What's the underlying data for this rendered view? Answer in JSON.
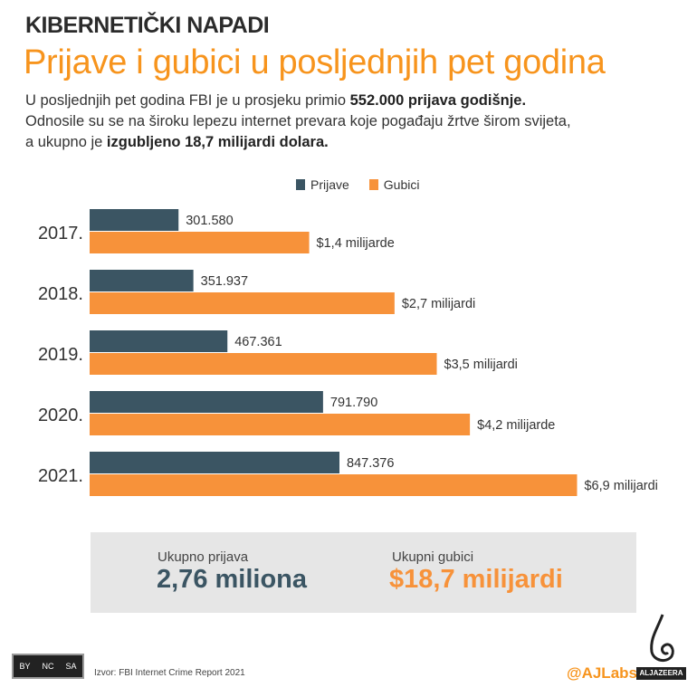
{
  "header": {
    "kicker": "KIBERNETIČKI NAPADI",
    "title": "Prijave i gubici u posljednjih pet godina",
    "lead_1a": "U posljednjih pet godina FBI je u prosjeku primio ",
    "lead_1b": "552.000 prijava godišnje.",
    "lead_2": "Odnosile su se na  široku lepezu internet prevara koje pogađaju žrtve širom svijeta,",
    "lead_3a": "a ukupno je ",
    "lead_3b": "izgubljeno 18,7 milijardi dolara."
  },
  "chart_data": {
    "type": "bar",
    "orientation": "horizontal",
    "categories": [
      "2017.",
      "2018.",
      "2019.",
      "2020.",
      "2021."
    ],
    "series": [
      {
        "name": "Prijave",
        "color": "#3b5563",
        "values": [
          301580,
          351937,
          467361,
          791790,
          847376
        ],
        "labels": [
          "301.580",
          "351.937",
          "467.361",
          "791.790",
          "847.376"
        ]
      },
      {
        "name": "Gubici",
        "color": "#f7923a",
        "values": [
          1.4,
          2.7,
          3.5,
          4.2,
          6.9
        ],
        "labels": [
          "$1,4 milijarde",
          "$2,7 milijardi",
          "$3,5 milijardi",
          "$4,2 milijarde",
          "$6,9 milijardi"
        ]
      }
    ],
    "legend": "top"
  },
  "summary": {
    "reports_label": "Ukupno prijava",
    "reports_value": "2,76 miliona",
    "losses_label": "Ukupni gubici",
    "losses_value": "$18,7 milijardi"
  },
  "footer": {
    "source": "Izvor:  FBI Internet Crime Report 2021",
    "handle": "@AJLabs",
    "brand": "ALJAZEERA",
    "license": [
      "BY",
      "NC",
      "SA"
    ]
  }
}
